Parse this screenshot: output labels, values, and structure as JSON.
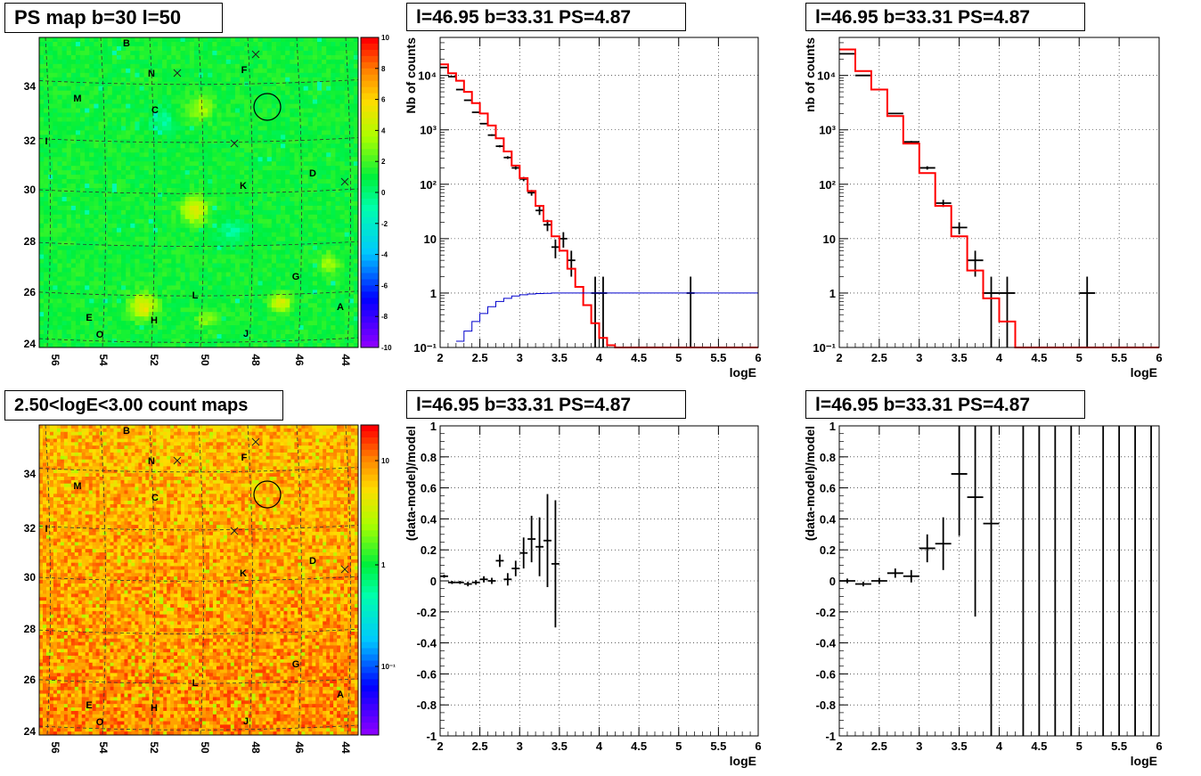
{
  "panels": {
    "ps_map": {
      "title": "PS map b=30 l=50",
      "colorbar_ticks": [
        "10",
        "8",
        "6",
        "4",
        "2",
        "0",
        "-2",
        "-4",
        "-6",
        "-8",
        "-10"
      ]
    },
    "count_map": {
      "title": "2.50<logE<3.00 count maps",
      "colorbar_ticks": [
        "10",
        "1",
        "10⁻¹"
      ]
    },
    "spectrum_left": {
      "title": "l=46.95 b=33.31 PS=4.87"
    },
    "spectrum_right": {
      "title": "l=46.95 b=33.31 PS=4.87"
    },
    "residual_left": {
      "title": "l=46.95 b=33.31 PS=4.87"
    },
    "residual_right": {
      "title": "l=46.95 b=33.31 PS=4.87"
    }
  },
  "maps": {
    "x_tick_labels": [
      "56",
      "54",
      "52",
      "50",
      "48",
      "46",
      "44"
    ],
    "y_tick_labels": [
      "34",
      "32",
      "30",
      "28",
      "26",
      "24"
    ],
    "source_labels": [
      "B",
      "N",
      "F",
      "M",
      "C",
      "I",
      "D",
      "K",
      "G",
      "L",
      "A",
      "E",
      "H",
      "O",
      "J"
    ]
  },
  "chart_data": [
    {
      "type": "line",
      "panel": "spectrum_left",
      "xlabel": "logE",
      "ylabel": "Nb of counts",
      "xlim": [
        2,
        6
      ],
      "ylim": [
        0.1,
        50000
      ],
      "yscale": "log",
      "grid": true,
      "x_tick_labels": [
        "2",
        "2.5",
        "3",
        "3.5",
        "4",
        "4.5",
        "5",
        "5.5",
        "6"
      ],
      "y_tick_labels": [
        "10⁻¹",
        "1",
        "10",
        "10²",
        "10³",
        "10⁴"
      ],
      "series": [
        {
          "style": "data",
          "color": "#000000",
          "points": [
            [
              2.05,
              14000
            ],
            [
              2.15,
              9500
            ],
            [
              2.25,
              5500
            ],
            [
              2.35,
              3500
            ],
            [
              2.45,
              2100
            ],
            [
              2.55,
              1300
            ],
            [
              2.65,
              800
            ],
            [
              2.75,
              500
            ],
            [
              2.85,
              310
            ],
            [
              2.95,
              200
            ],
            [
              3.05,
              125
            ],
            [
              3.15,
              70
            ],
            [
              3.25,
              33
            ],
            [
              3.35,
              18
            ],
            [
              3.45,
              7
            ],
            [
              3.55,
              10
            ],
            [
              3.65,
              4
            ],
            [
              3.95,
              1
            ],
            [
              4.05,
              1
            ],
            [
              5.15,
              1
            ]
          ]
        },
        {
          "style": "step",
          "color": "#ff0000",
          "points": [
            [
              2.0,
              16000
            ],
            [
              2.1,
              11000
            ],
            [
              2.2,
              8000
            ],
            [
              2.3,
              5000
            ],
            [
              2.4,
              3100
            ],
            [
              2.5,
              2000
            ],
            [
              2.6,
              1200
            ],
            [
              2.7,
              700
            ],
            [
              2.8,
              400
            ],
            [
              2.9,
              220
            ],
            [
              3.0,
              130
            ],
            [
              3.1,
              75
            ],
            [
              3.2,
              40
            ],
            [
              3.3,
              21
            ],
            [
              3.4,
              11
            ],
            [
              3.5,
              6
            ],
            [
              3.6,
              2.8
            ],
            [
              3.7,
              1.3
            ],
            [
              3.8,
              0.6
            ],
            [
              3.9,
              0.28
            ],
            [
              4.0,
              0.15
            ],
            [
              4.1,
              0.11
            ],
            [
              4.2,
              0.1
            ]
          ]
        },
        {
          "style": "step",
          "color": "#0000cc",
          "points": [
            [
              2.2,
              0.13
            ],
            [
              2.3,
              0.2
            ],
            [
              2.4,
              0.3
            ],
            [
              2.5,
              0.42
            ],
            [
              2.6,
              0.56
            ],
            [
              2.7,
              0.7
            ],
            [
              2.8,
              0.8
            ],
            [
              2.9,
              0.88
            ],
            [
              3.0,
              0.93
            ],
            [
              3.1,
              0.96
            ],
            [
              3.2,
              0.98
            ],
            [
              3.3,
              0.99
            ],
            [
              3.4,
              1.0
            ],
            [
              3.5,
              1.0
            ]
          ]
        }
      ]
    },
    {
      "type": "line",
      "panel": "spectrum_right",
      "xlabel": "logE",
      "ylabel": "nb of counts",
      "xlim": [
        2,
        6
      ],
      "ylim": [
        0.1,
        50000
      ],
      "yscale": "log",
      "grid": true,
      "x_tick_labels": [
        "2",
        "2.5",
        "3",
        "3.5",
        "4",
        "4.5",
        "5",
        "5.5",
        "6"
      ],
      "y_tick_labels": [
        "10⁻¹",
        "1",
        "10",
        "10²",
        "10³",
        "10⁴"
      ],
      "series": [
        {
          "style": "data",
          "color": "#000000",
          "points": [
            [
              2.1,
              25000
            ],
            [
              2.3,
              10000
            ],
            [
              2.5,
              5500
            ],
            [
              2.7,
              2000
            ],
            [
              2.9,
              600
            ],
            [
              3.1,
              200
            ],
            [
              3.3,
              45
            ],
            [
              3.5,
              16
            ],
            [
              3.7,
              4
            ],
            [
              3.9,
              1
            ],
            [
              4.1,
              1
            ],
            [
              5.1,
              1
            ]
          ]
        },
        {
          "style": "step",
          "color": "#ff0000",
          "points": [
            [
              2.0,
              30000
            ],
            [
              2.2,
              12000
            ],
            [
              2.4,
              5500
            ],
            [
              2.6,
              1800
            ],
            [
              2.8,
              560
            ],
            [
              3.0,
              160
            ],
            [
              3.2,
              40
            ],
            [
              3.4,
              11
            ],
            [
              3.6,
              2.6
            ],
            [
              3.8,
              0.8
            ],
            [
              4.0,
              0.3
            ],
            [
              4.2,
              0.1
            ]
          ]
        }
      ]
    },
    {
      "type": "scatter",
      "panel": "residual_left",
      "xlabel": "logE",
      "ylabel": "(data-model)/model",
      "xlim": [
        2,
        6
      ],
      "ylim": [
        -1,
        1
      ],
      "grid": true,
      "x_tick_labels": [
        "2",
        "2.5",
        "3",
        "3.5",
        "4",
        "4.5",
        "5",
        "5.5",
        "6"
      ],
      "y_tick_labels": [
        "1",
        "0.8",
        "0.6",
        "0.4",
        "0.2",
        "0",
        "-0.2",
        "-0.4",
        "-0.6",
        "-0.8",
        "-1"
      ],
      "series": [
        {
          "color": "#000000",
          "points": [
            [
              2.05,
              0.03,
              0.01
            ],
            [
              2.15,
              -0.01,
              0.01
            ],
            [
              2.25,
              -0.01,
              0.01
            ],
            [
              2.35,
              -0.02,
              0.015
            ],
            [
              2.45,
              -0.01,
              0.015
            ],
            [
              2.55,
              0.01,
              0.02
            ],
            [
              2.65,
              0.0,
              0.02
            ],
            [
              2.75,
              0.13,
              0.04
            ],
            [
              2.85,
              0.01,
              0.04
            ],
            [
              2.95,
              0.08,
              0.05
            ],
            [
              3.05,
              0.18,
              0.1
            ],
            [
              3.15,
              0.27,
              0.15
            ],
            [
              3.25,
              0.22,
              0.19
            ],
            [
              3.35,
              0.26,
              0.3
            ],
            [
              3.45,
              0.11,
              0.41
            ]
          ]
        }
      ]
    },
    {
      "type": "scatter",
      "panel": "residual_right",
      "xlabel": "logE",
      "ylabel": "(data-model)/model",
      "xlim": [
        2,
        6
      ],
      "ylim": [
        -1,
        1
      ],
      "grid": true,
      "x_tick_labels": [
        "2",
        "2.5",
        "3",
        "3.5",
        "4",
        "4.5",
        "5",
        "5.5",
        "6"
      ],
      "y_tick_labels": [
        "1",
        "0.8",
        "0.6",
        "0.4",
        "0.2",
        "0",
        "-0.2",
        "-0.4",
        "-0.6",
        "-0.8",
        "-1"
      ],
      "series": [
        {
          "color": "#000000",
          "points": [
            [
              2.1,
              0.0,
              0.015
            ],
            [
              2.3,
              -0.02,
              0.015
            ],
            [
              2.5,
              0.0,
              0.02
            ],
            [
              2.7,
              0.05,
              0.03
            ],
            [
              2.9,
              0.03,
              0.04
            ],
            [
              3.1,
              0.21,
              0.09
            ],
            [
              3.3,
              0.24,
              0.17
            ],
            [
              3.5,
              0.69,
              0.4
            ],
            [
              3.7,
              0.54,
              0.77
            ],
            [
              3.9,
              0.37,
              1.5
            ],
            [
              4.3,
              0,
              2
            ],
            [
              4.5,
              0,
              2
            ],
            [
              4.7,
              0,
              2
            ],
            [
              4.9,
              0,
              2
            ],
            [
              5.3,
              0,
              2
            ],
            [
              5.5,
              0,
              2
            ],
            [
              5.7,
              0,
              2
            ],
            [
              5.9,
              0,
              2
            ]
          ]
        }
      ]
    }
  ]
}
